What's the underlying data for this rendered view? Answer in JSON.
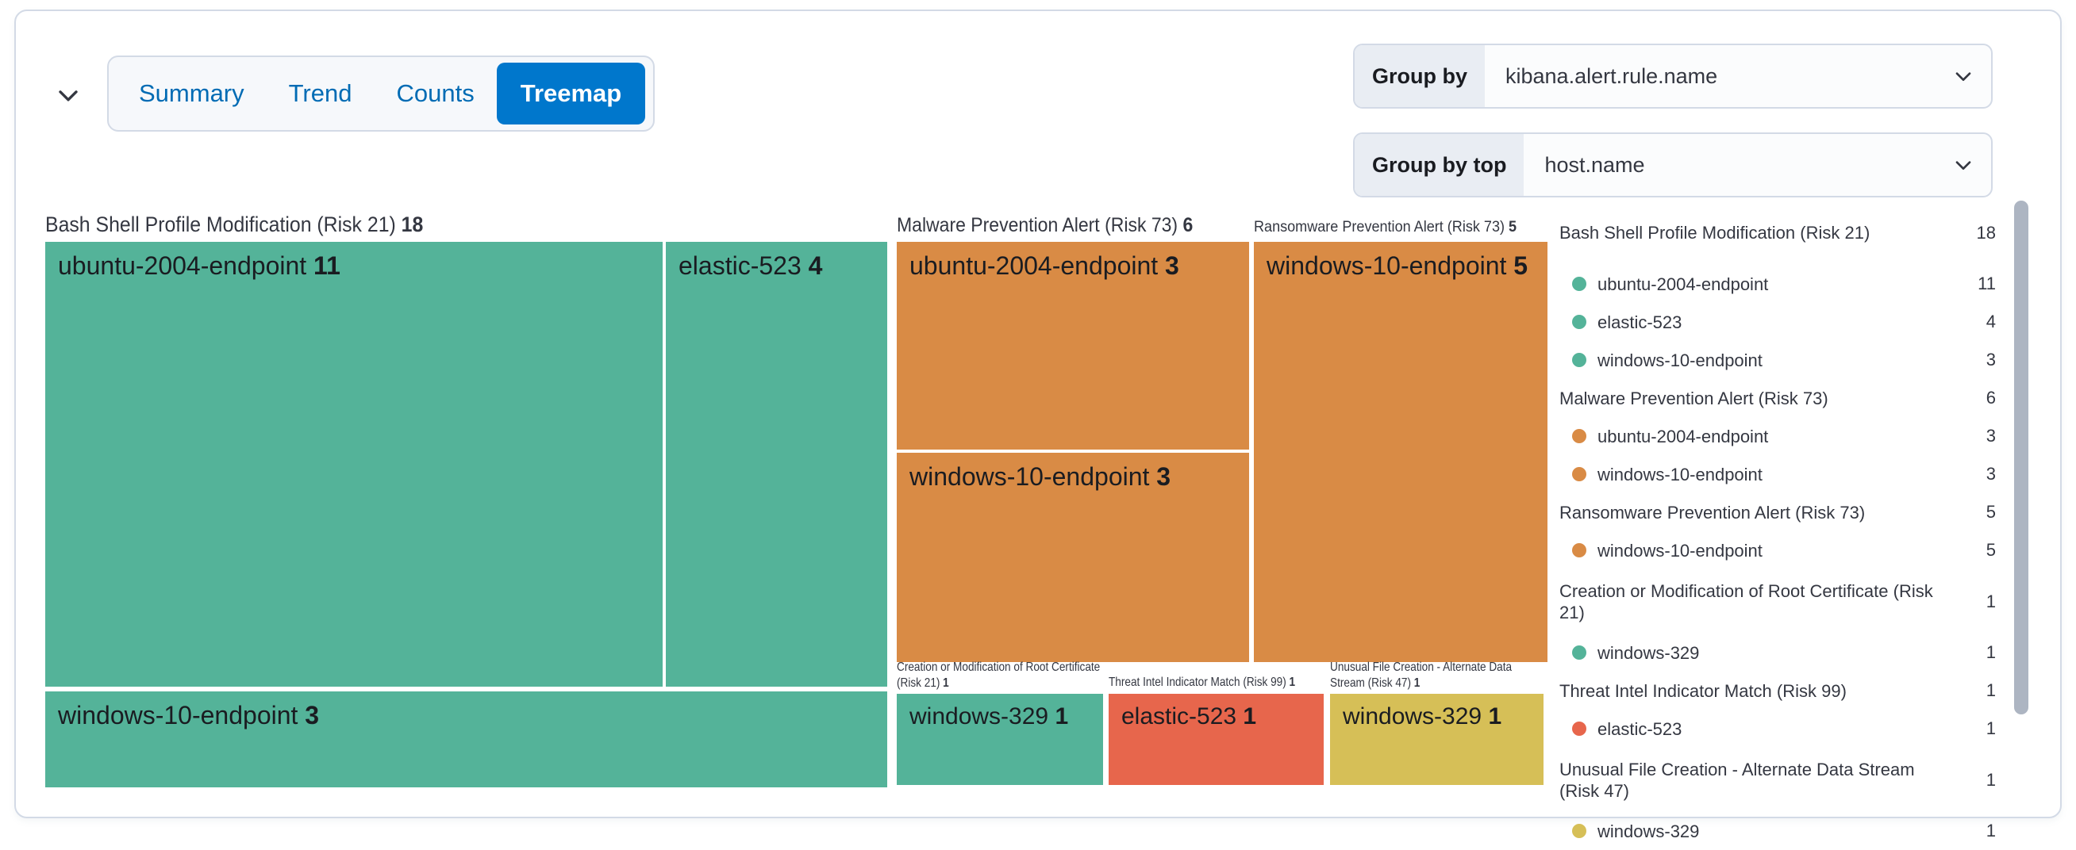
{
  "tabs": {
    "items": [
      {
        "label": "Summary",
        "selected": false
      },
      {
        "label": "Trend",
        "selected": false
      },
      {
        "label": "Counts",
        "selected": false
      },
      {
        "label": "Treemap",
        "selected": true
      }
    ]
  },
  "controls": {
    "group_by": {
      "label": "Group by",
      "value": "kibana.alert.rule.name"
    },
    "group_by_top": {
      "label": "Group by top",
      "value": "host.name"
    }
  },
  "colors": {
    "green": "#54B399",
    "orange": "#D98B45",
    "red": "#E7664C",
    "yellow": "#D6BF57",
    "tab_selected_bg": "#0077CC",
    "tab_text": "#006BB4",
    "border": "#D3DAE6",
    "text": "#343741",
    "prepend_bg": "#E9EDF3",
    "scrollbar": "#98A2B3"
  },
  "chart_data": {
    "type": "treemap",
    "group_by_field": "kibana.alert.rule.name",
    "split_field": "host.name",
    "groups": [
      {
        "id": "bash",
        "name": "Bash Shell Profile Modification (Risk 21)",
        "value": 18,
        "children": [
          {
            "name": "ubuntu-2004-endpoint",
            "value": 11,
            "color": "green"
          },
          {
            "name": "elastic-523",
            "value": 4,
            "color": "green"
          },
          {
            "name": "windows-10-endpoint",
            "value": 3,
            "color": "green"
          }
        ]
      },
      {
        "id": "malware",
        "name": "Malware Prevention Alert (Risk 73)",
        "value": 6,
        "children": [
          {
            "name": "ubuntu-2004-endpoint",
            "value": 3,
            "color": "orange"
          },
          {
            "name": "windows-10-endpoint",
            "value": 3,
            "color": "orange"
          }
        ]
      },
      {
        "id": "ransomware",
        "name": "Ransomware Prevention Alert (Risk 73)",
        "value": 5,
        "children": [
          {
            "name": "windows-10-endpoint",
            "value": 5,
            "color": "orange"
          }
        ]
      },
      {
        "id": "rootcert",
        "name": "Creation or Modification of Root Certificate (Risk 21)",
        "value": 1,
        "children": [
          {
            "name": "windows-329",
            "value": 1,
            "color": "green"
          }
        ]
      },
      {
        "id": "threatintel",
        "name": "Threat Intel Indicator Match (Risk 99)",
        "value": 1,
        "children": [
          {
            "name": "elastic-523",
            "value": 1,
            "color": "red"
          }
        ]
      },
      {
        "id": "unusual",
        "name": "Unusual File Creation - Alternate Data Stream (Risk 47)",
        "value": 1,
        "children": [
          {
            "name": "windows-329",
            "value": 1,
            "color": "yellow"
          }
        ]
      }
    ]
  }
}
